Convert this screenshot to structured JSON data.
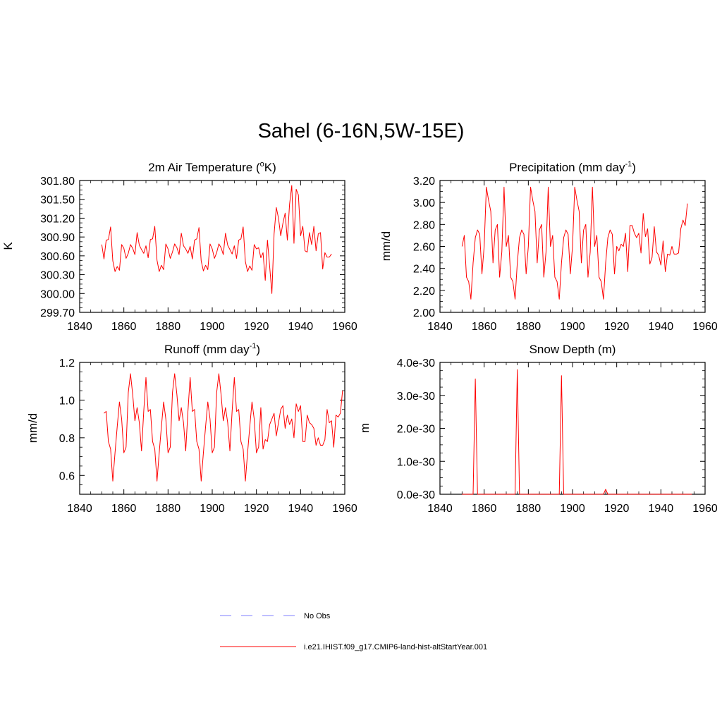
{
  "title": "Sahel (6-16N,5W-15E)",
  "colors": {
    "model": "#ff0000",
    "obs": "#9999ff",
    "axis": "#000000"
  },
  "legend": {
    "obs_label": "No Obs",
    "model_label": "i.e21.IHIST.f09_g17.CMIP6-land-hist-altStartYear.001"
  },
  "chart_data": [
    {
      "type": "line",
      "title": "2m Air Temperature (°K)",
      "title_main": "2m Air Temperature (",
      "title_sup": "o",
      "title_tail": "K)",
      "ylabel": "K",
      "xlim": [
        1840,
        1960
      ],
      "ylim": [
        299.7,
        301.8
      ],
      "x_ticks": [
        1840,
        1860,
        1880,
        1900,
        1920,
        1940,
        1960
      ],
      "y_ticks": [
        299.7,
        300.0,
        300.3,
        300.6,
        300.9,
        301.2,
        301.5,
        301.8
      ],
      "y_tick_labels": [
        "299.70",
        "300.00",
        "300.30",
        "300.60",
        "300.90",
        "301.20",
        "301.50",
        "301.80"
      ],
      "x_start": 1850,
      "series": [
        {
          "values": [
            300.78,
            300.55,
            300.85,
            300.86,
            301.06,
            300.52,
            300.35,
            300.43,
            300.37,
            300.78,
            300.72,
            300.56,
            300.64,
            300.78,
            300.72,
            300.62,
            300.97,
            300.77,
            300.7,
            300.64,
            300.76,
            300.57,
            300.86,
            300.87,
            301.07,
            300.53,
            300.35,
            300.45,
            300.38,
            300.79,
            300.71,
            300.56,
            300.66,
            300.79,
            300.73,
            300.62,
            300.96,
            300.76,
            300.71,
            300.64,
            300.75,
            300.55,
            300.85,
            300.87,
            301.05,
            300.52,
            300.36,
            300.45,
            300.38,
            300.79,
            300.71,
            300.56,
            300.65,
            300.79,
            300.73,
            300.62,
            300.96,
            300.77,
            300.7,
            300.63,
            300.76,
            300.56,
            300.85,
            300.87,
            301.06,
            300.51,
            300.35,
            300.44,
            300.37,
            300.78,
            300.71,
            300.73,
            300.57,
            300.65,
            300.21,
            300.85,
            300.43,
            300.0,
            300.95,
            301.37,
            301.2,
            300.92,
            301.12,
            301.28,
            300.85,
            301.42,
            301.72,
            300.8,
            301.66,
            301.57,
            300.92,
            301.07,
            300.68,
            300.66,
            300.97,
            300.78,
            301.07,
            300.68,
            300.95,
            300.97,
            300.39,
            300.65,
            300.58,
            300.58,
            300.63
          ]
        }
      ]
    },
    {
      "type": "line",
      "title": "Precipitation (mm day-1)",
      "title_main": "Precipitation (mm day",
      "title_sup": "-1",
      "title_tail": ")",
      "ylabel": "mm/d",
      "xlim": [
        1840,
        1960
      ],
      "ylim": [
        2.0,
        3.2
      ],
      "x_ticks": [
        1840,
        1860,
        1880,
        1900,
        1920,
        1940,
        1960
      ],
      "y_ticks": [
        2.0,
        2.2,
        2.4,
        2.6,
        2.8,
        3.0,
        3.2
      ],
      "y_tick_labels": [
        "2.00",
        "2.20",
        "2.40",
        "2.60",
        "2.80",
        "3.00",
        "3.20"
      ],
      "x_start": 1850,
      "series": [
        {
          "values": [
            2.6,
            2.7,
            2.32,
            2.28,
            2.12,
            2.45,
            2.68,
            2.75,
            2.71,
            2.35,
            2.6,
            3.14,
            3.02,
            2.92,
            2.45,
            2.75,
            2.8,
            2.32,
            2.55,
            3.14,
            2.6,
            2.7,
            2.32,
            2.28,
            2.12,
            2.45,
            2.68,
            2.75,
            2.71,
            2.35,
            2.6,
            3.14,
            3.02,
            2.92,
            2.45,
            2.75,
            2.8,
            2.32,
            2.55,
            3.14,
            2.6,
            2.7,
            2.32,
            2.28,
            2.12,
            2.45,
            2.68,
            2.75,
            2.71,
            2.35,
            2.6,
            3.14,
            3.02,
            2.92,
            2.45,
            2.75,
            2.8,
            2.32,
            2.55,
            3.14,
            2.6,
            2.7,
            2.32,
            2.28,
            2.12,
            2.45,
            2.68,
            2.75,
            2.71,
            2.35,
            2.6,
            2.56,
            2.62,
            2.6,
            2.72,
            2.37,
            2.79,
            2.79,
            2.72,
            2.68,
            2.72,
            2.54,
            2.9,
            2.69,
            2.76,
            2.44,
            2.5,
            2.78,
            2.55,
            2.52,
            2.43,
            2.65,
            2.37,
            2.53,
            2.52,
            2.6,
            2.53,
            2.53,
            2.54,
            2.76,
            2.84,
            2.79,
            2.99
          ]
        }
      ]
    },
    {
      "type": "line",
      "title": "Runoff (mm day-1)",
      "title_main": "Runoff (mm day",
      "title_sup": "-1",
      "title_tail": ")",
      "ylabel": "mm/d",
      "xlim": [
        1840,
        1960
      ],
      "ylim": [
        0.5,
        1.2
      ],
      "x_ticks": [
        1840,
        1860,
        1880,
        1900,
        1920,
        1940,
        1960
      ],
      "y_ticks": [
        0.6,
        0.8,
        1.0,
        1.2
      ],
      "y_tick_labels": [
        "0.6",
        "0.8",
        "1.0",
        "1.2"
      ],
      "x_start": 1851,
      "series": [
        {
          "values": [
            0.93,
            0.94,
            0.78,
            0.74,
            0.57,
            0.72,
            0.86,
            0.99,
            0.9,
            0.72,
            0.75,
            1.04,
            1.14,
            1.03,
            0.89,
            0.96,
            0.88,
            0.73,
            0.94,
            1.12,
            0.94,
            0.95,
            0.78,
            0.74,
            0.57,
            0.72,
            0.86,
            0.99,
            0.9,
            0.72,
            0.75,
            1.04,
            1.14,
            1.03,
            0.89,
            0.96,
            0.88,
            0.73,
            0.94,
            1.12,
            0.94,
            0.95,
            0.78,
            0.74,
            0.57,
            0.72,
            0.86,
            0.99,
            0.9,
            0.72,
            0.75,
            1.04,
            1.14,
            1.03,
            0.89,
            0.96,
            0.88,
            0.73,
            0.94,
            1.12,
            0.94,
            0.95,
            0.78,
            0.74,
            0.57,
            0.72,
            0.86,
            0.99,
            0.9,
            0.72,
            0.75,
            0.96,
            0.74,
            0.79,
            0.78,
            0.87,
            0.9,
            0.93,
            0.81,
            0.88,
            0.95,
            0.97,
            0.85,
            0.92,
            0.87,
            0.9,
            0.8,
            0.98,
            0.94,
            0.97,
            0.78,
            0.78,
            0.92,
            0.88,
            0.87,
            0.85,
            0.76,
            0.8,
            0.76,
            0.76,
            0.79,
            0.95,
            0.88,
            0.89,
            0.75,
            0.92,
            0.91,
            0.93,
            1.05
          ]
        }
      ]
    },
    {
      "type": "line",
      "title": "Snow Depth (m)",
      "title_main": "Snow Depth (m)",
      "title_sup": "",
      "title_tail": "",
      "ylabel": "m",
      "xlim": [
        1840,
        1960
      ],
      "ylim": [
        0,
        4e-30
      ],
      "x_ticks": [
        1840,
        1860,
        1880,
        1900,
        1920,
        1940,
        1960
      ],
      "y_ticks": [
        0,
        1e-30,
        2e-30,
        3e-30,
        4e-30
      ],
      "y_tick_labels": [
        "0.0e-30",
        "1.0e-30",
        "2.0e-30",
        "3.0e-30",
        "4.0e-30"
      ],
      "x_start": 1850,
      "series": [
        {
          "values": [
            0,
            0,
            0,
            0,
            0,
            0,
            3.5e-30,
            0,
            0,
            0,
            0,
            0,
            0,
            0,
            0,
            0,
            0,
            0,
            0,
            0,
            0,
            0,
            0,
            0,
            0,
            3.78e-30,
            0,
            0,
            0,
            0,
            0,
            0,
            0,
            0,
            0,
            0,
            0,
            0,
            0,
            0,
            0,
            0,
            0,
            0,
            0,
            3.6e-30,
            0,
            0,
            0,
            0,
            0,
            0,
            0,
            0,
            0,
            0,
            0,
            0,
            0,
            0,
            0,
            0,
            0,
            0,
            0,
            1.5e-31,
            0,
            0,
            0,
            0,
            0,
            0,
            0,
            0,
            0,
            0,
            0,
            0,
            0,
            0,
            0,
            0,
            0,
            0,
            0,
            0,
            0,
            0,
            0,
            0,
            0,
            0,
            0,
            0,
            0,
            0,
            0,
            0,
            0,
            0,
            0,
            0,
            0,
            0,
            0
          ]
        }
      ]
    }
  ]
}
